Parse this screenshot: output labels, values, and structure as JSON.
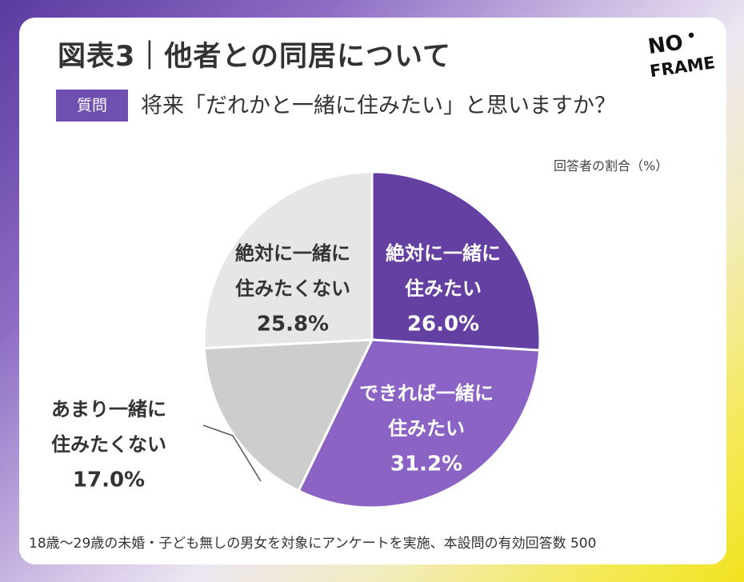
{
  "header": {
    "title": "図表3｜他者との同居について",
    "question_badge": "質問",
    "question_text": "将来「だれかと一緒に住みたい」と思いますか？",
    "unit_note": "回答者の割合（%）"
  },
  "logo": {
    "line1": "NO",
    "line2": "FRAME"
  },
  "footnote": "18歳〜29歳の未婚・子ども無しの男女を対象にアンケートを実施、本設問の有効回答数 500",
  "colors": {
    "purple_dark": "#6540a3",
    "purple_mid": "#8a63c4",
    "gray_mid": "#cdcdcd",
    "gray_light": "#e6e6e6"
  },
  "chart_data": {
    "type": "pie",
    "unit": "%",
    "slices": [
      {
        "line1": "絶対に一緒に",
        "line2": "住みたい",
        "value": 26.0,
        "label": "26.0%",
        "color": "#6540a3",
        "text_color": "#ffffff"
      },
      {
        "line1": "できれば一緒に",
        "line2": "住みたい",
        "value": 31.2,
        "label": "31.2%",
        "color": "#8a63c4",
        "text_color": "#ffffff"
      },
      {
        "line1": "あまり一緒に",
        "line2": "住みたくない",
        "value": 17.0,
        "label": "17.0%",
        "color": "#cdcdcd",
        "text_color": "#333333"
      },
      {
        "line1": "絶対に一緒に",
        "line2": "住みたくない",
        "value": 25.8,
        "label": "25.8%",
        "color": "#e6e6e6",
        "text_color": "#333333"
      }
    ]
  }
}
